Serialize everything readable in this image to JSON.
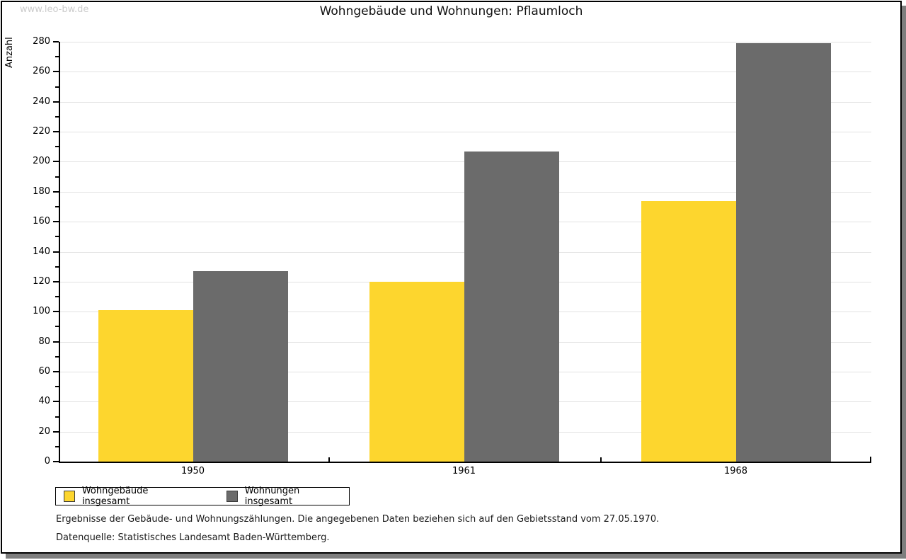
{
  "watermark": "www.leo-bw.de",
  "chart_data": {
    "type": "bar",
    "title": "Wohngebäude und Wohnungen: Pflaumloch",
    "categories": [
      "1950",
      "1961",
      "1968"
    ],
    "series": [
      {
        "name": "Wohngebäude insgesamt",
        "color": "#fdd62e",
        "values": [
          101,
          120,
          174
        ]
      },
      {
        "name": "Wohnungen insgesamt",
        "color": "#6b6b6b",
        "values": [
          127,
          207,
          279
        ]
      }
    ],
    "xlabel": "",
    "ylabel": "Anzahl",
    "ylim": [
      0,
      280
    ],
    "ytick_step": 20,
    "yminor_step": 10,
    "grid": "horizontal",
    "legend_position": "bottom-left",
    "gridline_color": "#e2e2e2",
    "axis_color": "#000000"
  },
  "footer": {
    "line1": "Ergebnisse der Gebäude- und Wohnungszählungen. Die angegebenen Daten beziehen sich auf den Gebietsstand vom 27.05.1970.",
    "line2": "Datenquelle: Statistisches Landesamt Baden-Württemberg."
  }
}
